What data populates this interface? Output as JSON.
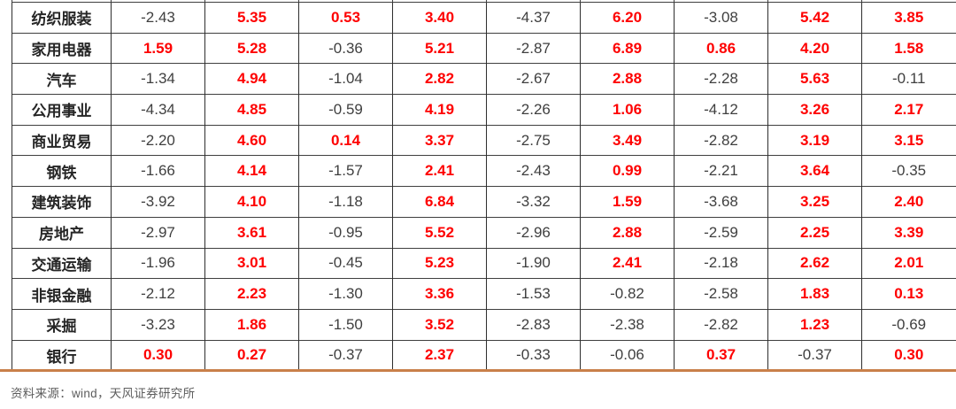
{
  "chart_data": {
    "type": "table",
    "rows": [
      {
        "sector": "纺织服装",
        "values": [
          "-2.43",
          "5.35",
          "0.53",
          "3.40",
          "-4.37",
          "6.20",
          "-3.08",
          "5.42",
          "3.85"
        ]
      },
      {
        "sector": "家用电器",
        "values": [
          "1.59",
          "5.28",
          "-0.36",
          "5.21",
          "-2.87",
          "6.89",
          "0.86",
          "4.20",
          "1.58"
        ]
      },
      {
        "sector": "汽车",
        "values": [
          "-1.34",
          "4.94",
          "-1.04",
          "2.82",
          "-2.67",
          "2.88",
          "-2.28",
          "5.63",
          "-0.11"
        ]
      },
      {
        "sector": "公用事业",
        "values": [
          "-4.34",
          "4.85",
          "-0.59",
          "4.19",
          "-2.26",
          "1.06",
          "-4.12",
          "3.26",
          "2.17"
        ]
      },
      {
        "sector": "商业贸易",
        "values": [
          "-2.20",
          "4.60",
          "0.14",
          "3.37",
          "-2.75",
          "3.49",
          "-2.82",
          "3.19",
          "3.15"
        ]
      },
      {
        "sector": "钢铁",
        "values": [
          "-1.66",
          "4.14",
          "-1.57",
          "2.41",
          "-2.43",
          "0.99",
          "-2.21",
          "3.64",
          "-0.35"
        ]
      },
      {
        "sector": "建筑装饰",
        "values": [
          "-3.92",
          "4.10",
          "-1.18",
          "6.84",
          "-3.32",
          "1.59",
          "-3.68",
          "3.25",
          "2.40"
        ]
      },
      {
        "sector": "房地产",
        "values": [
          "-2.97",
          "3.61",
          "-0.95",
          "5.52",
          "-2.96",
          "2.88",
          "-2.59",
          "2.25",
          "3.39"
        ]
      },
      {
        "sector": "交通运输",
        "values": [
          "-1.96",
          "3.01",
          "-0.45",
          "5.23",
          "-1.90",
          "2.41",
          "-2.18",
          "2.62",
          "2.01"
        ]
      },
      {
        "sector": "非银金融",
        "values": [
          "-2.12",
          "2.23",
          "-1.30",
          "3.36",
          "-1.53",
          "-0.82",
          "-2.58",
          "1.83",
          "0.13"
        ]
      },
      {
        "sector": "采掘",
        "values": [
          "-3.23",
          "1.86",
          "-1.50",
          "3.52",
          "-2.83",
          "-2.38",
          "-2.82",
          "1.23",
          "-0.69"
        ]
      },
      {
        "sector": "银行",
        "values": [
          "0.30",
          "0.27",
          "-0.37",
          "2.37",
          "-0.33",
          "-0.06",
          "0.37",
          "-0.37",
          "0.30"
        ]
      }
    ],
    "layout_hints": {
      "gridlines": true,
      "value_color_rule": "positive values bold red, negative values dark gray",
      "top_row_clipped": true,
      "right_edge_clipped": true
    }
  },
  "colors": {
    "positive_value": "#fe0000",
    "negative_value": "#3f3f3f",
    "grid": "#3f3f3f",
    "bottom_accent_rule": "#c9804a",
    "source_text": "#5d5d5d"
  },
  "footer": {
    "source_note": "资料来源：wind，天风证券研究所"
  }
}
